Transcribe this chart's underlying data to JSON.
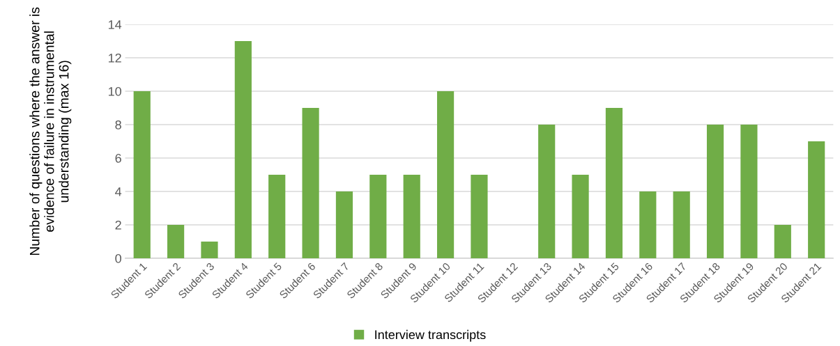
{
  "chart_data": {
    "type": "bar",
    "categories": [
      "Student 1",
      "Student 2",
      "Student 3",
      "Student 4",
      "Student 5",
      "Student 6",
      "Student 7",
      "Student 8",
      "Student 9",
      "Student 10",
      "Student 11",
      "Student 12",
      "Student 13",
      "Student 14",
      "Student 15",
      "Student 16",
      "Student 17",
      "Student 18",
      "Student 19",
      "Student 20",
      "Student 21"
    ],
    "series": [
      {
        "name": "Interview transcripts",
        "color": "#70ad47",
        "values": [
          10,
          2,
          1,
          13,
          5,
          9,
          4,
          5,
          5,
          10,
          5,
          0,
          8,
          5,
          9,
          4,
          4,
          8,
          8,
          2,
          7
        ]
      }
    ],
    "ylabel": "Number of questions where the answer is evidence of failure in instrumental understanding (max 16)",
    "ylim": [
      0,
      14
    ],
    "yticks": [
      0,
      2,
      4,
      6,
      8,
      10,
      12,
      14
    ],
    "grid": "y",
    "legend": "bottom"
  }
}
